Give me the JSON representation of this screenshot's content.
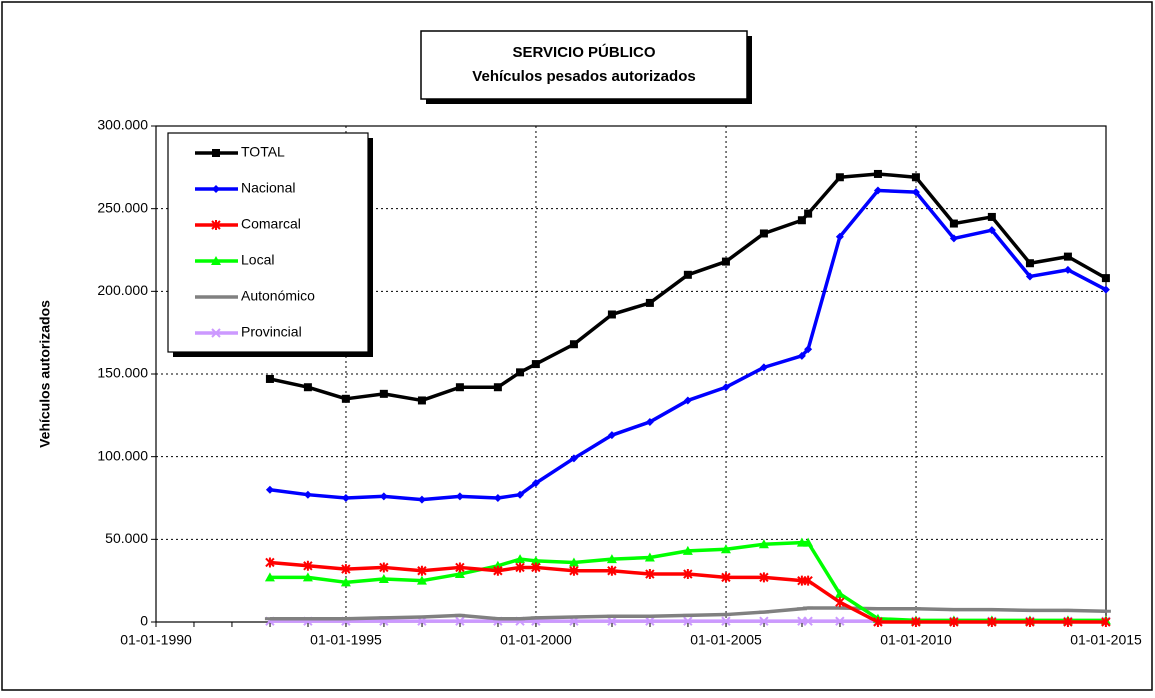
{
  "chart_data": {
    "type": "line",
    "title": "SERVICIO PÚBLICO",
    "subtitle": "Vehículos pesados autorizados",
    "y_label": "Vehículos autorizados",
    "x": [
      "1992-12-31",
      "1993-12-31",
      "1994-12-31",
      "1995-12-31",
      "1996-12-31",
      "1997-12-31",
      "1998-12-31",
      "1999-08-01",
      "1999-12-31",
      "2000-12-31",
      "2001-12-31",
      "2002-12-31",
      "2003-12-31",
      "2004-12-31",
      "2005-12-31",
      "2006-12-31",
      "2007-03-01",
      "2007-12-31",
      "2008-12-31",
      "2009-12-31",
      "2010-12-31",
      "2011-12-31",
      "2012-12-31",
      "2013-12-31",
      "2014-12-31"
    ],
    "series": [
      {
        "name": "TOTAL",
        "color": "#000000",
        "marker": "square",
        "values": [
          147000,
          142000,
          135000,
          138000,
          134000,
          142000,
          142000,
          151000,
          156000,
          168000,
          186000,
          193000,
          210000,
          218000,
          235000,
          243000,
          247000,
          269000,
          271000,
          269000,
          241000,
          245000,
          217000,
          221000,
          208000
        ]
      },
      {
        "name": "Nacional",
        "color": "#0000ff",
        "marker": "diamond",
        "values": [
          80000,
          77000,
          75000,
          76000,
          74000,
          76000,
          75000,
          77000,
          84000,
          99000,
          113000,
          121000,
          134000,
          142000,
          154000,
          161000,
          165000,
          233000,
          261000,
          260000,
          232000,
          237000,
          209000,
          213000,
          201000
        ]
      },
      {
        "name": "Comarcal",
        "color": "#ff0000",
        "marker": "asterisk",
        "values": [
          36000,
          34000,
          32000,
          33000,
          31000,
          33000,
          31000,
          33000,
          33000,
          31000,
          31000,
          29000,
          29000,
          27000,
          27000,
          25000,
          25000,
          12000,
          0,
          0,
          0,
          0,
          0,
          0,
          0
        ]
      },
      {
        "name": "Local",
        "color": "#00ff00",
        "marker": "triangle",
        "values": [
          27000,
          27000,
          24000,
          26000,
          25000,
          29000,
          34000,
          38000,
          37000,
          36000,
          38000,
          39000,
          43000,
          44000,
          47000,
          48000,
          48000,
          17000,
          2000,
          1000,
          1000,
          1000,
          1000,
          1000,
          1000
        ]
      },
      {
        "name": "Autonómico",
        "color": "#808080",
        "marker": "dash",
        "values": [
          2000,
          2000,
          2000,
          2500,
          3000,
          4000,
          2000,
          2000,
          2500,
          3000,
          3500,
          3500,
          4000,
          4500,
          6000,
          8000,
          8500,
          8500,
          8000,
          8000,
          7500,
          7500,
          7000,
          7000,
          6500
        ]
      },
      {
        "name": "Provincial",
        "color": "#cc99ff",
        "marker": "x",
        "values": [
          500,
          500,
          500,
          500,
          500,
          500,
          500,
          500,
          500,
          500,
          500,
          500,
          500,
          500,
          500,
          500,
          500,
          500,
          500,
          500,
          500,
          500,
          500,
          500,
          500
        ]
      }
    ],
    "xlim": [
      "1990-01-01",
      "2015-01-01"
    ],
    "xticks": [
      {
        "value": "1990-01-01",
        "label": "01-01-1990"
      },
      {
        "value": "1995-01-01",
        "label": "01-01-1995"
      },
      {
        "value": "2000-01-01",
        "label": "01-01-2000"
      },
      {
        "value": "2005-01-01",
        "label": "01-01-2005"
      },
      {
        "value": "2010-01-01",
        "label": "01-01-2010"
      },
      {
        "value": "2015-01-01",
        "label": "01-01-2015"
      }
    ],
    "ylim": [
      0,
      300000
    ],
    "yticks": [
      0,
      {
        "value": 50000,
        "label": "50.000"
      },
      {
        "value": 100000,
        "label": "100.000"
      },
      {
        "value": 150000,
        "label": "150.000"
      },
      {
        "value": 200000,
        "label": "200.000"
      },
      {
        "value": 250000,
        "label": "250.000"
      },
      {
        "value": 300000,
        "label": "300.000"
      }
    ],
    "grid": true,
    "legend": "upper left"
  }
}
